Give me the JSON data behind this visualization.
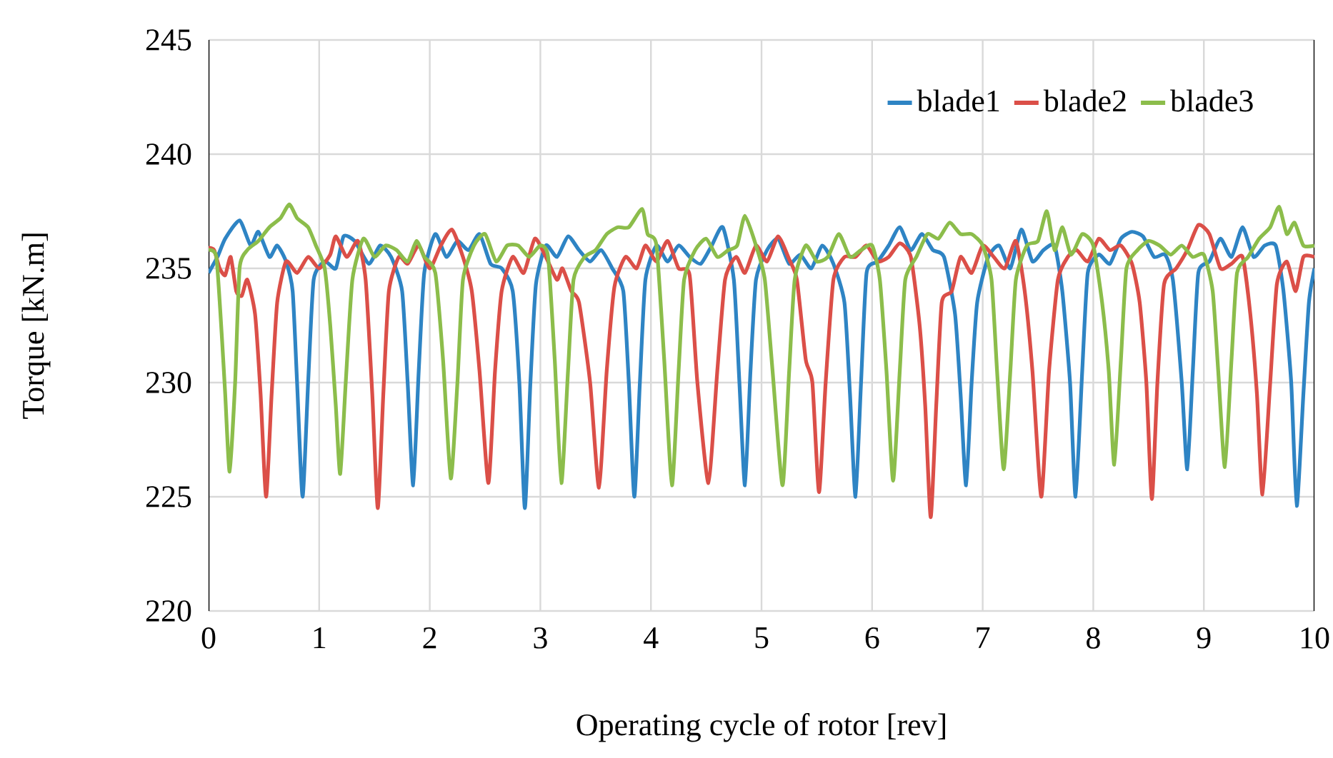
{
  "chart_data": {
    "type": "line",
    "xlabel": "Operating cycle of rotor [rev]",
    "ylabel": "Torque [kN.m]",
    "xlim": [
      0,
      10
    ],
    "xticks": [
      0,
      1,
      2,
      3,
      4,
      5,
      6,
      7,
      8,
      9,
      10
    ],
    "ylim": [
      220,
      245
    ],
    "yticks": [
      220,
      225,
      230,
      235,
      240,
      245
    ],
    "grid": true,
    "legend": "top",
    "marker": "none",
    "line_style": "solid",
    "series": [
      {
        "name": "blade1",
        "color": "#2e84c4",
        "x": [
          0,
          0.08,
          0.15,
          0.28,
          0.38,
          0.45,
          0.55,
          0.62,
          0.7,
          0.76,
          0.8,
          0.85,
          0.9,
          0.95,
          1.05,
          1.15,
          1.22,
          1.32,
          1.45,
          1.55,
          1.65,
          1.75,
          1.8,
          1.85,
          1.9,
          1.95,
          2.05,
          2.15,
          2.25,
          2.35,
          2.45,
          2.55,
          2.65,
          2.75,
          2.81,
          2.86,
          2.91,
          2.96,
          3.05,
          3.15,
          3.25,
          3.35,
          3.45,
          3.55,
          3.65,
          3.75,
          3.8,
          3.85,
          3.9,
          3.95,
          4.05,
          4.15,
          4.25,
          4.35,
          4.45,
          4.55,
          4.65,
          4.75,
          4.8,
          4.85,
          4.9,
          4.95,
          5.05,
          5.15,
          5.25,
          5.35,
          5.45,
          5.55,
          5.65,
          5.75,
          5.8,
          5.85,
          5.9,
          5.95,
          6.05,
          6.15,
          6.25,
          6.35,
          6.45,
          6.55,
          6.65,
          6.75,
          6.8,
          6.85,
          6.9,
          6.95,
          7.05,
          7.15,
          7.25,
          7.35,
          7.45,
          7.55,
          7.65,
          7.72,
          7.79,
          7.84,
          7.9,
          7.95,
          8.05,
          8.15,
          8.25,
          8.35,
          8.45,
          8.55,
          8.65,
          8.72,
          8.8,
          8.85,
          8.9,
          8.95,
          9.05,
          9.15,
          9.25,
          9.35,
          9.45,
          9.55,
          9.65,
          9.72,
          9.79,
          9.84,
          9.9,
          9.95,
          10
        ],
        "values": [
          234.8,
          235.5,
          236.3,
          237.1,
          236.0,
          236.6,
          235.5,
          236.0,
          235.3,
          234.0,
          230,
          225.0,
          230,
          234.5,
          235.3,
          235.0,
          236.4,
          236.2,
          235.2,
          236.0,
          235.5,
          234.0,
          230,
          225.5,
          230.5,
          234.8,
          236.5,
          235.5,
          236.2,
          235.8,
          236.5,
          235.2,
          235.0,
          234.0,
          230,
          224.5,
          230,
          234.3,
          236.0,
          235.5,
          236.4,
          235.8,
          235.3,
          235.8,
          235.0,
          234.0,
          230,
          225.0,
          230,
          234.5,
          236.0,
          235.3,
          236.0,
          235.5,
          235.2,
          236.0,
          236.8,
          234.5,
          230,
          225.5,
          230.5,
          234.5,
          235.8,
          236.3,
          235.2,
          235.6,
          235.0,
          236.0,
          235.2,
          233.5,
          229.5,
          225.0,
          230,
          234.8,
          235.3,
          236.0,
          236.8,
          235.8,
          236.5,
          235.8,
          235.5,
          233.0,
          229.5,
          225.5,
          230,
          233.5,
          235.5,
          236.0,
          235.0,
          236.7,
          235.3,
          235.8,
          236.0,
          234.0,
          230,
          225.0,
          230.5,
          234.8,
          235.6,
          235.2,
          236.3,
          236.6,
          236.4,
          235.5,
          235.6,
          234.5,
          230,
          226.2,
          230.5,
          234.8,
          235.3,
          236.3,
          235.5,
          236.8,
          235.5,
          236.0,
          236.0,
          234.0,
          230,
          224.6,
          229.5,
          233.5,
          235.0
        ]
      },
      {
        "name": "blade2",
        "color": "#db4f48",
        "x": [
          0,
          0.05,
          0.1,
          0.15,
          0.2,
          0.25,
          0.3,
          0.35,
          0.42,
          0.47,
          0.52,
          0.57,
          0.62,
          0.7,
          0.8,
          0.9,
          1.0,
          1.1,
          1.15,
          1.25,
          1.35,
          1.42,
          1.48,
          1.53,
          1.58,
          1.63,
          1.72,
          1.8,
          1.9,
          2.0,
          2.1,
          2.2,
          2.3,
          2.38,
          2.45,
          2.53,
          2.59,
          2.65,
          2.75,
          2.85,
          2.95,
          3.05,
          3.15,
          3.2,
          3.28,
          3.35,
          3.45,
          3.53,
          3.6,
          3.67,
          3.77,
          3.87,
          3.95,
          4.05,
          4.15,
          4.25,
          4.35,
          4.42,
          4.52,
          4.6,
          4.67,
          4.77,
          4.85,
          4.95,
          5.05,
          5.15,
          5.25,
          5.32,
          5.4,
          5.46,
          5.52,
          5.58,
          5.65,
          5.75,
          5.85,
          5.95,
          6.05,
          6.15,
          6.25,
          6.35,
          6.43,
          6.48,
          6.53,
          6.58,
          6.63,
          6.72,
          6.8,
          6.9,
          7.0,
          7.1,
          7.2,
          7.3,
          7.38,
          7.45,
          7.53,
          7.6,
          7.68,
          7.77,
          7.85,
          7.95,
          8.05,
          8.15,
          8.25,
          8.35,
          8.42,
          8.48,
          8.53,
          8.58,
          8.64,
          8.75,
          8.85,
          8.95,
          9.05,
          9.15,
          9.25,
          9.35,
          9.42,
          9.48,
          9.53,
          9.6,
          9.66,
          9.75,
          9.83,
          9.9,
          10
        ],
        "values": [
          235.9,
          235.8,
          235.0,
          234.7,
          235.5,
          234.0,
          233.8,
          234.5,
          233.0,
          229.5,
          225.0,
          229.5,
          233.5,
          235.3,
          234.8,
          235.5,
          235.0,
          235.6,
          236.4,
          235.5,
          236.2,
          234.5,
          229.5,
          224.5,
          229.5,
          234.0,
          235.5,
          235.2,
          236.0,
          235.0,
          236.0,
          236.7,
          235.5,
          234.0,
          230.5,
          225.6,
          230.5,
          234.0,
          235.5,
          234.8,
          236.3,
          235.5,
          234.5,
          235.0,
          234.0,
          233.5,
          230,
          225.4,
          230.5,
          234.2,
          235.5,
          235.0,
          236.0,
          235.3,
          236.2,
          235.0,
          234.7,
          230,
          225.6,
          230.5,
          234.5,
          235.5,
          234.8,
          236.0,
          235.3,
          236.4,
          235.4,
          234.5,
          231,
          230,
          225.2,
          230,
          234.5,
          235.5,
          235.5,
          236.0,
          235.3,
          235.5,
          236.1,
          235.5,
          232.5,
          229,
          224.1,
          229,
          233.5,
          234.0,
          235.5,
          234.8,
          236.0,
          235.5,
          235.0,
          236.2,
          234.0,
          230.5,
          225.0,
          230.5,
          234.5,
          235.5,
          235.8,
          235.3,
          236.3,
          235.8,
          236.0,
          235.2,
          233.5,
          230,
          224.9,
          230,
          234.3,
          235.0,
          235.8,
          236.9,
          236.5,
          235.0,
          235.2,
          235.5,
          233.0,
          229.5,
          225.1,
          230,
          234.3,
          235.3,
          234.0,
          235.5,
          235.5
        ]
      },
      {
        "name": "blade3",
        "color": "#8cbd4b",
        "x": [
          0,
          0.07,
          0.12,
          0.15,
          0.19,
          0.24,
          0.28,
          0.35,
          0.45,
          0.55,
          0.65,
          0.73,
          0.8,
          0.9,
          0.97,
          1.05,
          1.1,
          1.15,
          1.19,
          1.24,
          1.3,
          1.4,
          1.5,
          1.6,
          1.7,
          1.8,
          1.88,
          1.95,
          2.05,
          2.12,
          2.19,
          2.25,
          2.3,
          2.4,
          2.5,
          2.6,
          2.7,
          2.8,
          2.9,
          3.0,
          3.07,
          3.13,
          3.19,
          3.25,
          3.3,
          3.4,
          3.5,
          3.6,
          3.7,
          3.8,
          3.92,
          3.97,
          4.05,
          4.12,
          4.19,
          4.25,
          4.3,
          4.4,
          4.5,
          4.6,
          4.7,
          4.78,
          4.85,
          4.95,
          5.03,
          5.1,
          5.19,
          5.25,
          5.3,
          5.4,
          5.5,
          5.6,
          5.7,
          5.8,
          5.9,
          6.0,
          6.07,
          6.13,
          6.19,
          6.25,
          6.3,
          6.4,
          6.5,
          6.6,
          6.7,
          6.8,
          6.9,
          7.0,
          7.08,
          7.13,
          7.19,
          7.25,
          7.3,
          7.4,
          7.5,
          7.58,
          7.65,
          7.72,
          7.8,
          7.9,
          8.0,
          8.08,
          8.14,
          8.19,
          8.25,
          8.3,
          8.4,
          8.5,
          8.6,
          8.7,
          8.8,
          8.9,
          9.0,
          9.08,
          9.13,
          9.19,
          9.25,
          9.3,
          9.4,
          9.5,
          9.6,
          9.68,
          9.75,
          9.82,
          9.9,
          10
        ],
        "values": [
          235.8,
          235.5,
          232,
          229.5,
          226.1,
          230,
          235.0,
          235.8,
          236.2,
          236.8,
          237.2,
          237.8,
          237.2,
          236.8,
          236.0,
          235.0,
          232.5,
          229,
          226.0,
          230,
          234.5,
          236.3,
          235.5,
          236.0,
          235.8,
          235.3,
          236.2,
          235.5,
          234.8,
          231,
          225.8,
          230,
          234.5,
          236.0,
          236.5,
          235.3,
          236.0,
          236.0,
          235.5,
          236.0,
          235.5,
          231,
          225.6,
          230.5,
          234.5,
          235.5,
          235.8,
          236.5,
          236.8,
          236.8,
          237.6,
          236.5,
          236.0,
          231,
          225.5,
          230.5,
          234.5,
          235.8,
          236.3,
          235.5,
          235.8,
          236.0,
          237.3,
          236.0,
          234.5,
          230.5,
          225.5,
          230.5,
          234.5,
          236.0,
          235.3,
          235.5,
          236.5,
          235.5,
          235.8,
          236.0,
          234.5,
          230.5,
          225.7,
          230.5,
          234.5,
          235.5,
          236.5,
          236.3,
          237.0,
          236.5,
          236.5,
          236.0,
          234.5,
          230.5,
          226.2,
          230.5,
          234.5,
          236.0,
          236.2,
          237.5,
          235.8,
          236.8,
          235.6,
          236.5,
          236.0,
          233.5,
          230.5,
          226.4,
          231,
          235.0,
          235.8,
          236.2,
          236.0,
          235.6,
          236.0,
          235.5,
          235.6,
          234.0,
          230.5,
          226.3,
          231,
          234.8,
          235.5,
          236.3,
          236.8,
          237.7,
          236.5,
          237.0,
          236.0,
          236.0
        ]
      }
    ]
  }
}
